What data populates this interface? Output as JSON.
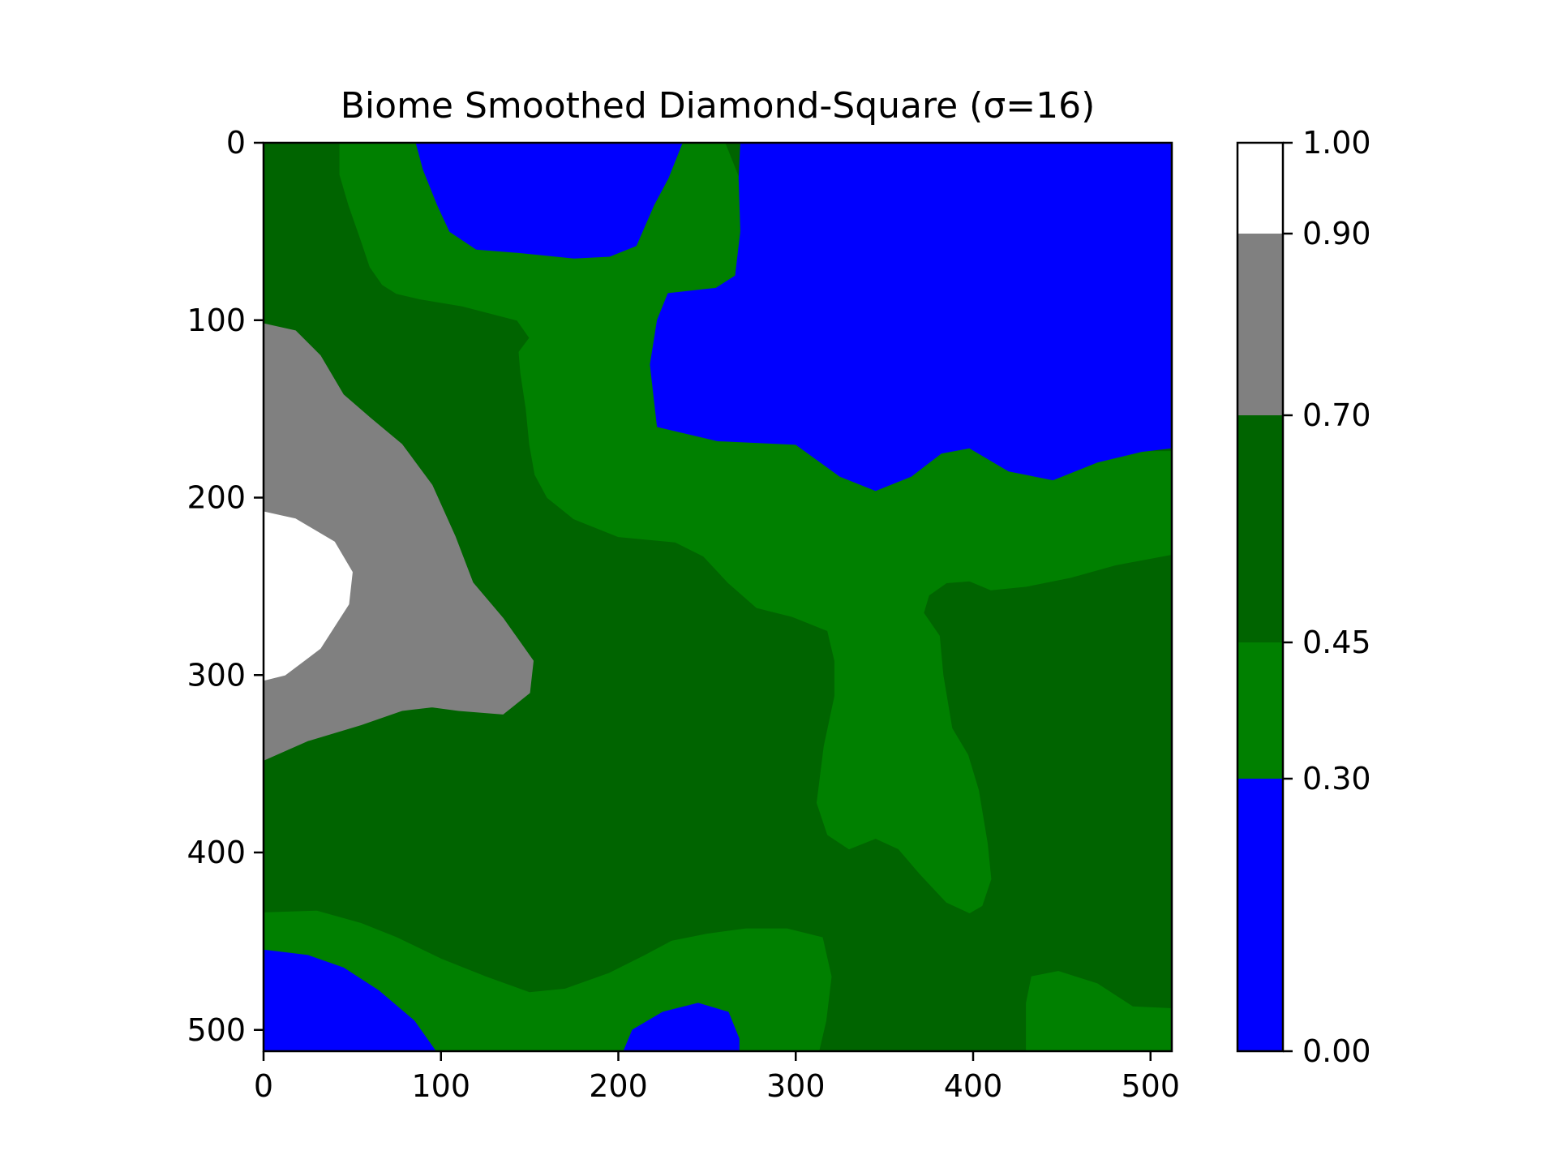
{
  "chart_data": {
    "type": "heatmap",
    "title": "Biome Smoothed Diamond-Square (σ=16)",
    "xlabel": "",
    "ylabel": "",
    "xlim": [
      0,
      512
    ],
    "ylim": [
      512,
      0
    ],
    "x_ticks": [
      0,
      100,
      200,
      300,
      400,
      500
    ],
    "y_ticks": [
      0,
      100,
      200,
      300,
      400,
      500
    ],
    "grid": false,
    "colorbar": {
      "placement": "right",
      "range": [
        0,
        1
      ],
      "boundaries": [
        0.0,
        0.3,
        0.45,
        0.7,
        0.9,
        1.0
      ],
      "tick_labels": [
        "0.00",
        "0.30",
        "0.45",
        "0.70",
        "0.90",
        "1.00"
      ],
      "colors": [
        "#0000ff",
        "#008000",
        "#006400",
        "#808080",
        "#ffffff"
      ]
    },
    "regions": [
      {
        "color": "#006400",
        "level": 3,
        "points": [
          [
            0,
            0
          ],
          [
            512,
            0
          ],
          [
            512,
            512
          ],
          [
            0,
            512
          ]
        ]
      },
      {
        "color": "#008000",
        "level": 2,
        "points": [
          [
            43,
            0
          ],
          [
            260,
            0
          ],
          [
            268,
            20
          ],
          [
            269,
            50
          ],
          [
            266,
            75
          ],
          [
            255,
            82
          ],
          [
            228,
            85
          ],
          [
            222,
            100
          ],
          [
            218,
            125
          ],
          [
            222,
            160
          ],
          [
            256,
            168
          ],
          [
            300,
            170
          ],
          [
            325,
            188
          ],
          [
            345,
            196
          ],
          [
            365,
            188
          ],
          [
            382,
            175
          ],
          [
            398,
            172
          ],
          [
            420,
            185
          ],
          [
            445,
            190
          ],
          [
            470,
            180
          ],
          [
            495,
            174
          ],
          [
            512,
            174
          ],
          [
            512,
            232
          ],
          [
            480,
            238
          ],
          [
            455,
            245
          ],
          [
            430,
            250
          ],
          [
            410,
            252
          ],
          [
            398,
            247
          ],
          [
            385,
            248
          ],
          [
            375,
            255
          ],
          [
            372,
            265
          ],
          [
            381,
            278
          ],
          [
            383,
            300
          ],
          [
            388,
            330
          ],
          [
            397,
            345
          ],
          [
            403,
            365
          ],
          [
            408,
            395
          ],
          [
            410,
            415
          ],
          [
            405,
            430
          ],
          [
            398,
            434
          ],
          [
            385,
            428
          ],
          [
            370,
            412
          ],
          [
            358,
            398
          ],
          [
            345,
            392
          ],
          [
            330,
            398
          ],
          [
            318,
            390
          ],
          [
            312,
            372
          ],
          [
            316,
            340
          ],
          [
            322,
            312
          ],
          [
            322,
            292
          ],
          [
            318,
            275
          ],
          [
            298,
            267
          ],
          [
            278,
            262
          ],
          [
            262,
            248
          ],
          [
            248,
            233
          ],
          [
            232,
            225
          ],
          [
            200,
            222
          ],
          [
            175,
            212
          ],
          [
            160,
            200
          ],
          [
            153,
            187
          ],
          [
            150,
            170
          ],
          [
            148,
            150
          ],
          [
            145,
            130
          ],
          [
            144,
            118
          ],
          [
            150,
            110
          ],
          [
            143,
            100
          ],
          [
            112,
            92
          ],
          [
            88,
            88
          ],
          [
            75,
            85
          ],
          [
            67,
            80
          ],
          [
            60,
            70
          ],
          [
            55,
            55
          ],
          [
            48,
            35
          ],
          [
            43,
            18
          ]
        ]
      },
      {
        "color": "#008000",
        "level": 2,
        "points": [
          [
            0,
            434
          ],
          [
            30,
            433
          ],
          [
            55,
            440
          ],
          [
            75,
            448
          ],
          [
            100,
            460
          ],
          [
            125,
            470
          ],
          [
            150,
            479
          ],
          [
            170,
            477
          ],
          [
            195,
            468
          ],
          [
            215,
            458
          ],
          [
            230,
            450
          ],
          [
            250,
            446
          ],
          [
            272,
            443
          ],
          [
            295,
            443
          ],
          [
            315,
            448
          ],
          [
            320,
            470
          ],
          [
            317,
            495
          ],
          [
            313,
            512
          ],
          [
            0,
            512
          ]
        ]
      },
      {
        "color": "#008000",
        "level": 2,
        "points": [
          [
            430,
            512
          ],
          [
            430,
            485
          ],
          [
            433,
            470
          ],
          [
            448,
            467
          ],
          [
            470,
            474
          ],
          [
            490,
            487
          ],
          [
            512,
            488
          ],
          [
            512,
            512
          ]
        ]
      },
      {
        "color": "#0000ff",
        "level": 0,
        "points": [
          [
            86,
            0
          ],
          [
            236,
            0
          ],
          [
            228,
            20
          ],
          [
            220,
            35
          ],
          [
            210,
            58
          ],
          [
            195,
            64
          ],
          [
            175,
            65
          ],
          [
            145,
            62
          ],
          [
            120,
            60
          ],
          [
            105,
            50
          ],
          [
            98,
            35
          ],
          [
            90,
            15
          ]
        ]
      },
      {
        "color": "#0000ff",
        "level": 0,
        "points": [
          [
            269,
            0
          ],
          [
            512,
            0
          ],
          [
            512,
            172
          ],
          [
            495,
            174
          ],
          [
            470,
            180
          ],
          [
            445,
            190
          ],
          [
            420,
            185
          ],
          [
            398,
            172
          ],
          [
            382,
            175
          ],
          [
            365,
            188
          ],
          [
            345,
            196
          ],
          [
            325,
            188
          ],
          [
            300,
            170
          ],
          [
            256,
            168
          ],
          [
            222,
            160
          ],
          [
            218,
            125
          ],
          [
            222,
            100
          ],
          [
            228,
            85
          ],
          [
            255,
            82
          ],
          [
            266,
            75
          ],
          [
            269,
            50
          ],
          [
            268,
            20
          ]
        ]
      },
      {
        "color": "#0000ff",
        "level": 0,
        "points": [
          [
            0,
            455
          ],
          [
            25,
            458
          ],
          [
            45,
            465
          ],
          [
            65,
            478
          ],
          [
            85,
            495
          ],
          [
            97,
            512
          ],
          [
            0,
            512
          ]
        ]
      },
      {
        "color": "#0000ff",
        "level": 0,
        "points": [
          [
            203,
            512
          ],
          [
            208,
            500
          ],
          [
            225,
            490
          ],
          [
            245,
            485
          ],
          [
            262,
            490
          ],
          [
            268,
            505
          ],
          [
            268,
            512
          ]
        ]
      },
      {
        "color": "#808080",
        "level": 4,
        "points": [
          [
            0,
            102
          ],
          [
            18,
            106
          ],
          [
            32,
            120
          ],
          [
            45,
            142
          ],
          [
            60,
            155
          ],
          [
            78,
            170
          ],
          [
            95,
            193
          ],
          [
            108,
            222
          ],
          [
            118,
            248
          ],
          [
            135,
            268
          ],
          [
            152,
            292
          ],
          [
            150,
            310
          ],
          [
            135,
            322
          ],
          [
            110,
            320
          ],
          [
            95,
            318
          ],
          [
            78,
            320
          ],
          [
            55,
            328
          ],
          [
            25,
            337
          ],
          [
            0,
            348
          ]
        ]
      },
      {
        "color": "#ffffff",
        "level": 5,
        "points": [
          [
            0,
            208
          ],
          [
            18,
            212
          ],
          [
            40,
            225
          ],
          [
            50,
            242
          ],
          [
            48,
            260
          ],
          [
            32,
            285
          ],
          [
            12,
            300
          ],
          [
            0,
            303
          ]
        ]
      }
    ]
  }
}
